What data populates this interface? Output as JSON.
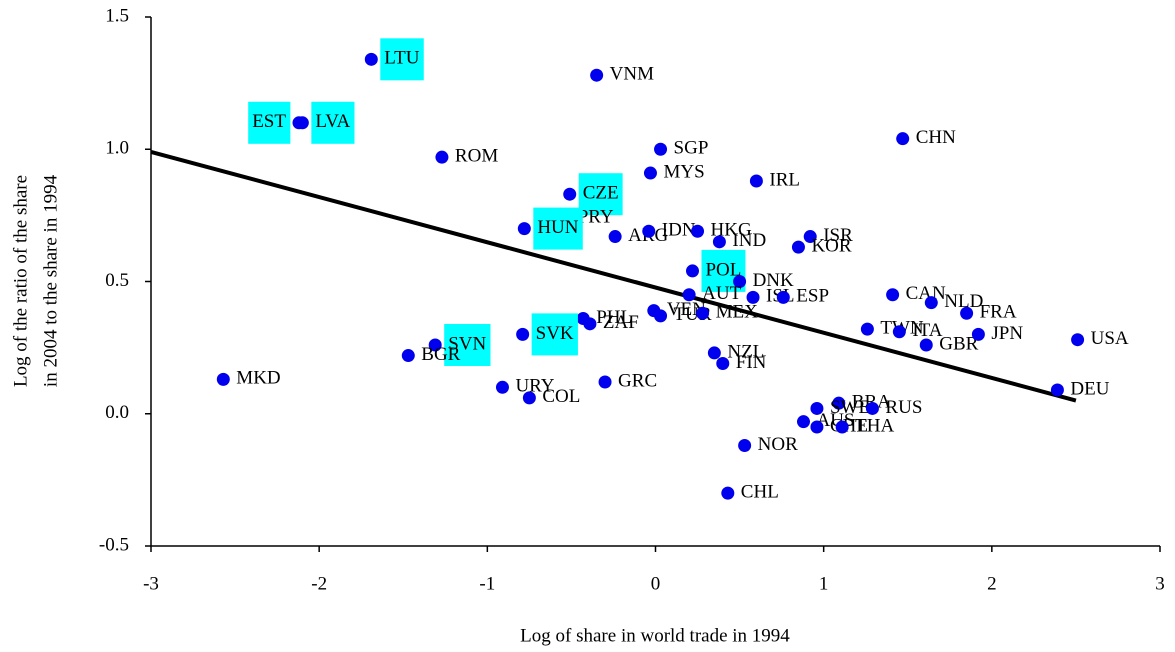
{
  "chart_data": {
    "type": "scatter",
    "x_label": "Log of share in world trade in 1994",
    "y_label_lines": [
      "Log of the ratio of the share",
      "in 2004 to the share in 1994"
    ],
    "xlim": [
      -3,
      3
    ],
    "ylim": [
      -0.5,
      1.5
    ],
    "xticks": [
      -3,
      -2,
      -1,
      0,
      1,
      2,
      3
    ],
    "yticks": [
      -0.5,
      {
        "value": 0,
        "label": "0.0"
      },
      0.5,
      {
        "value": 1,
        "label": "1.0"
      },
      1.5
    ],
    "color": "#0000ee",
    "highlight_color": "#00ffff",
    "trend_line": {
      "x": [
        -3,
        2.5
      ],
      "y": [
        0.99,
        0.05
      ]
    },
    "points": [
      {
        "name": "LTU",
        "x": -1.69,
        "y": 1.34,
        "highlight": true
      },
      {
        "name": "VNM",
        "x": -0.35,
        "y": 1.28
      },
      {
        "name": "EST",
        "x": -2.12,
        "y": 1.1,
        "highlight": true,
        "label_side": "left"
      },
      {
        "name": "LVA",
        "x": -2.1,
        "y": 1.1,
        "highlight": true
      },
      {
        "name": "ROM",
        "x": -1.27,
        "y": 0.97
      },
      {
        "name": "SGP",
        "x": 0.03,
        "y": 1.0
      },
      {
        "name": "MYS",
        "x": -0.03,
        "y": 0.91
      },
      {
        "name": "CHN",
        "x": 1.47,
        "y": 1.04
      },
      {
        "name": "IRL",
        "x": 0.6,
        "y": 0.88
      },
      {
        "name": "CZE",
        "x": -0.51,
        "y": 0.83,
        "highlight": true
      },
      {
        "name": "PRY",
        "x": -0.54,
        "y": 0.74
      },
      {
        "name": "HUN",
        "x": -0.78,
        "y": 0.7,
        "highlight": true
      },
      {
        "name": "ARG",
        "x": -0.24,
        "y": 0.67
      },
      {
        "name": "IDN",
        "x": -0.04,
        "y": 0.69
      },
      {
        "name": "HKG",
        "x": 0.25,
        "y": 0.69
      },
      {
        "name": "IND",
        "x": 0.38,
        "y": 0.65
      },
      {
        "name": "ISR",
        "x": 0.92,
        "y": 0.67
      },
      {
        "name": "KOR",
        "x": 0.85,
        "y": 0.63
      },
      {
        "name": "POL",
        "x": 0.22,
        "y": 0.54,
        "highlight": true
      },
      {
        "name": "DNK",
        "x": 0.5,
        "y": 0.5
      },
      {
        "name": "AUT",
        "x": 0.2,
        "y": 0.45
      },
      {
        "name": "ISL",
        "x": 0.58,
        "y": 0.44
      },
      {
        "name": "ESP",
        "x": 0.76,
        "y": 0.44
      },
      {
        "name": "CAN",
        "x": 1.41,
        "y": 0.45
      },
      {
        "name": "NLD",
        "x": 1.64,
        "y": 0.42
      },
      {
        "name": "FRA",
        "x": 1.85,
        "y": 0.38
      },
      {
        "name": "VEN",
        "x": -0.01,
        "y": 0.39
      },
      {
        "name": "TUR",
        "x": 0.03,
        "y": 0.37
      },
      {
        "name": "MEX",
        "x": 0.28,
        "y": 0.38
      },
      {
        "name": "PHL",
        "x": -0.43,
        "y": 0.36
      },
      {
        "name": "ZAF",
        "x": -0.39,
        "y": 0.34
      },
      {
        "name": "SVK",
        "x": -0.79,
        "y": 0.3,
        "highlight": true
      },
      {
        "name": "TWN",
        "x": 1.26,
        "y": 0.32
      },
      {
        "name": "ITA",
        "x": 1.45,
        "y": 0.31
      },
      {
        "name": "GBR",
        "x": 1.61,
        "y": 0.26
      },
      {
        "name": "JPN",
        "x": 1.92,
        "y": 0.3
      },
      {
        "name": "USA",
        "x": 2.51,
        "y": 0.28
      },
      {
        "name": "DEU",
        "x": 2.39,
        "y": 0.09
      },
      {
        "name": "SVN",
        "x": -1.31,
        "y": 0.26,
        "highlight": true
      },
      {
        "name": "BGR",
        "x": -1.47,
        "y": 0.22
      },
      {
        "name": "MKD",
        "x": -2.57,
        "y": 0.13
      },
      {
        "name": "URY",
        "x": -0.91,
        "y": 0.1
      },
      {
        "name": "COL",
        "x": -0.75,
        "y": 0.06
      },
      {
        "name": "GRC",
        "x": -0.3,
        "y": 0.12
      },
      {
        "name": "NZL",
        "x": 0.35,
        "y": 0.23
      },
      {
        "name": "FIN",
        "x": 0.4,
        "y": 0.19
      },
      {
        "name": "BRA",
        "x": 1.09,
        "y": 0.04
      },
      {
        "name": "SWE",
        "x": 0.96,
        "y": 0.02
      },
      {
        "name": "RUS",
        "x": 1.29,
        "y": 0.02
      },
      {
        "name": "AUS",
        "x": 0.88,
        "y": -0.03
      },
      {
        "name": "CHE",
        "x": 0.96,
        "y": -0.05
      },
      {
        "name": "THA",
        "x": 1.11,
        "y": -0.05
      },
      {
        "name": "NOR",
        "x": 0.53,
        "y": -0.12
      },
      {
        "name": "CHL",
        "x": 0.43,
        "y": -0.3
      }
    ]
  }
}
